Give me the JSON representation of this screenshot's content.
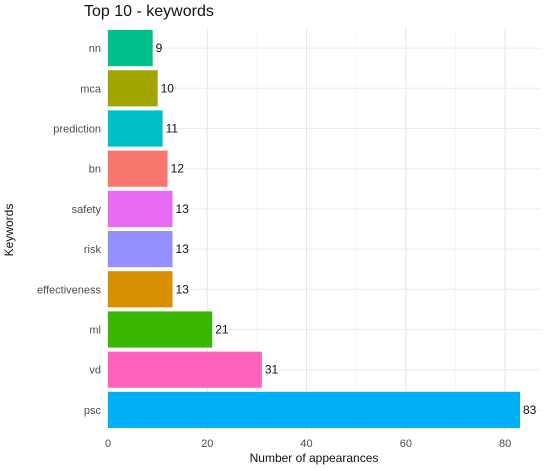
{
  "chart_data": {
    "type": "bar",
    "orientation": "horizontal",
    "title": "Top 10 - keywords",
    "xlabel": "Number of appearances",
    "ylabel": "Keywords",
    "xlim": [
      0,
      84
    ],
    "x_ticks": [
      0,
      20,
      40,
      60,
      80
    ],
    "grid": true,
    "legend": "none",
    "categories": [
      "nn",
      "mca",
      "prediction",
      "bn",
      "safety",
      "risk",
      "effectiveness",
      "ml",
      "vd",
      "psc"
    ],
    "values": [
      9,
      10,
      11,
      12,
      13,
      13,
      13,
      21,
      31,
      83
    ],
    "colors": [
      "#00C08B",
      "#A3A500",
      "#00BFC4",
      "#F8766D",
      "#E76BF3",
      "#9590FF",
      "#D89000",
      "#39B600",
      "#FF62BC",
      "#00B0F6"
    ]
  }
}
